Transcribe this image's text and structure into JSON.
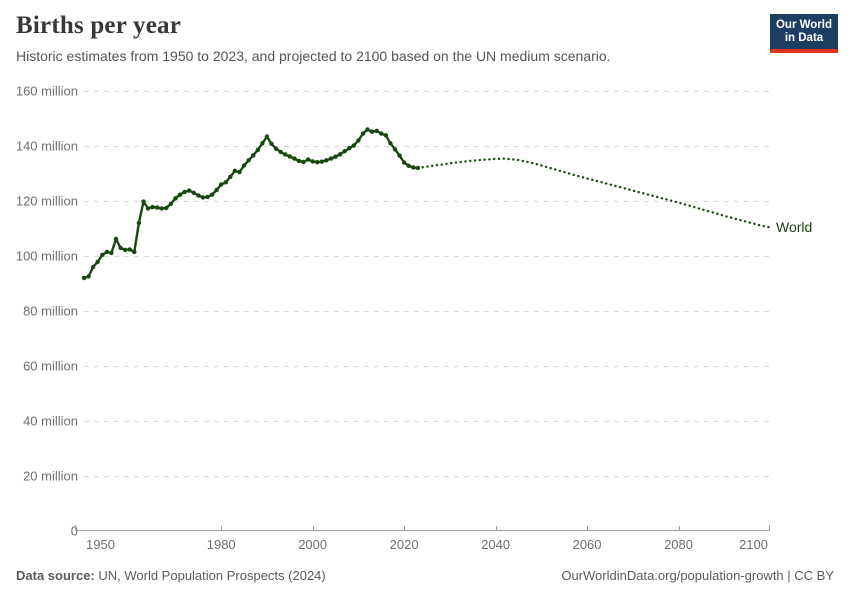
{
  "header": {
    "title": "Births per year",
    "subtitle": "Historic estimates from 1950 to 2023, and projected to 2100 based on the UN medium scenario."
  },
  "logo": {
    "line1": "Our World",
    "line2": "in Data"
  },
  "chart_data": {
    "type": "line",
    "title": "Births per year",
    "entity_label": "World",
    "unit": "million",
    "xlabel": "",
    "ylabel": "",
    "grid": true,
    "legend_position": "end-of-line",
    "xlim": [
      1950,
      2100
    ],
    "ylim": [
      0,
      160
    ],
    "xticks": [
      1950,
      1980,
      2000,
      2020,
      2040,
      2060,
      2080,
      2100
    ],
    "yticks": [
      {
        "value": 0,
        "label": "0"
      },
      {
        "value": 20,
        "label": "20 million"
      },
      {
        "value": 40,
        "label": "40 million"
      },
      {
        "value": 60,
        "label": "60 million"
      },
      {
        "value": 80,
        "label": "80 million"
      },
      {
        "value": 100,
        "label": "100 million"
      },
      {
        "value": 120,
        "label": "120 million"
      },
      {
        "value": 140,
        "label": "140 million"
      },
      {
        "value": 160,
        "label": "160 million"
      }
    ],
    "series": [
      {
        "name": "World — historic estimates (1950–2023)",
        "style": "solid",
        "markers": true,
        "points": [
          [
            1950,
            92.0
          ],
          [
            1951,
            92.6
          ],
          [
            1952,
            96.0
          ],
          [
            1953,
            97.9
          ],
          [
            1954,
            100.4
          ],
          [
            1955,
            101.5
          ],
          [
            1956,
            101.1
          ],
          [
            1957,
            106.2
          ],
          [
            1958,
            102.9
          ],
          [
            1959,
            102.2
          ],
          [
            1960,
            102.4
          ],
          [
            1961,
            101.5
          ],
          [
            1962,
            112.0
          ],
          [
            1963,
            119.8
          ],
          [
            1964,
            117.3
          ],
          [
            1965,
            117.8
          ],
          [
            1966,
            117.6
          ],
          [
            1967,
            117.3
          ],
          [
            1968,
            117.5
          ],
          [
            1969,
            119.0
          ],
          [
            1970,
            121.0
          ],
          [
            1971,
            122.3
          ],
          [
            1972,
            123.3
          ],
          [
            1973,
            123.8
          ],
          [
            1974,
            123.0
          ],
          [
            1975,
            122.0
          ],
          [
            1976,
            121.3
          ],
          [
            1977,
            121.5
          ],
          [
            1978,
            122.3
          ],
          [
            1979,
            124.0
          ],
          [
            1980,
            126.0
          ],
          [
            1981,
            126.8
          ],
          [
            1982,
            128.8
          ],
          [
            1983,
            131.0
          ],
          [
            1984,
            130.5
          ],
          [
            1985,
            132.9
          ],
          [
            1986,
            134.8
          ],
          [
            1987,
            136.6
          ],
          [
            1988,
            138.6
          ],
          [
            1989,
            141.0
          ],
          [
            1990,
            143.4
          ],
          [
            1991,
            140.8
          ],
          [
            1992,
            139.0
          ],
          [
            1993,
            137.8
          ],
          [
            1994,
            136.9
          ],
          [
            1995,
            136.2
          ],
          [
            1996,
            135.4
          ],
          [
            1997,
            134.6
          ],
          [
            1998,
            134.2
          ],
          [
            1999,
            135.1
          ],
          [
            2000,
            134.4
          ],
          [
            2001,
            134.1
          ],
          [
            2002,
            134.3
          ],
          [
            2003,
            134.8
          ],
          [
            2004,
            135.4
          ],
          [
            2005,
            136.1
          ],
          [
            2006,
            137.0
          ],
          [
            2007,
            138.1
          ],
          [
            2008,
            139.2
          ],
          [
            2009,
            140.2
          ],
          [
            2010,
            142.0
          ],
          [
            2011,
            144.5
          ],
          [
            2012,
            146.0
          ],
          [
            2013,
            145.2
          ],
          [
            2014,
            145.5
          ],
          [
            2015,
            144.5
          ],
          [
            2016,
            143.9
          ],
          [
            2017,
            141.0
          ],
          [
            2018,
            138.8
          ],
          [
            2019,
            136.5
          ],
          [
            2020,
            134.0
          ],
          [
            2021,
            132.8
          ],
          [
            2022,
            132.2
          ],
          [
            2023,
            132.0
          ]
        ]
      },
      {
        "name": "World — UN medium scenario projection (2023–2100)",
        "style": "dotted",
        "markers": false,
        "points": [
          [
            2023,
            132.0
          ],
          [
            2025,
            132.5
          ],
          [
            2028,
            133.2
          ],
          [
            2030,
            133.7
          ],
          [
            2033,
            134.3
          ],
          [
            2035,
            134.7
          ],
          [
            2038,
            135.1
          ],
          [
            2040,
            135.3
          ],
          [
            2042,
            135.4
          ],
          [
            2045,
            134.9
          ],
          [
            2048,
            133.8
          ],
          [
            2050,
            132.9
          ],
          [
            2053,
            131.5
          ],
          [
            2055,
            130.5
          ],
          [
            2058,
            129.1
          ],
          [
            2060,
            128.2
          ],
          [
            2063,
            126.9
          ],
          [
            2065,
            126.0
          ],
          [
            2068,
            124.7
          ],
          [
            2070,
            123.8
          ],
          [
            2073,
            122.5
          ],
          [
            2075,
            121.6
          ],
          [
            2078,
            120.3
          ],
          [
            2080,
            119.4
          ],
          [
            2083,
            118.0
          ],
          [
            2085,
            117.0
          ],
          [
            2088,
            115.6
          ],
          [
            2090,
            114.6
          ],
          [
            2093,
            113.3
          ],
          [
            2095,
            112.4
          ],
          [
            2098,
            111.1
          ],
          [
            2100,
            110.4
          ]
        ]
      }
    ]
  },
  "colors": {
    "line": "#18470f",
    "grid": "#d9d9d9",
    "axis": "#a0a0a0",
    "tick_text": "#6e6e6e",
    "logo_bg": "#1d3d63",
    "logo_red": "#e0321c"
  },
  "footer": {
    "source_label": "Data source:",
    "source_text": " UN, World Population Prospects (2024)",
    "right_text": "OurWorldinData.org/population-growth | CC BY"
  }
}
